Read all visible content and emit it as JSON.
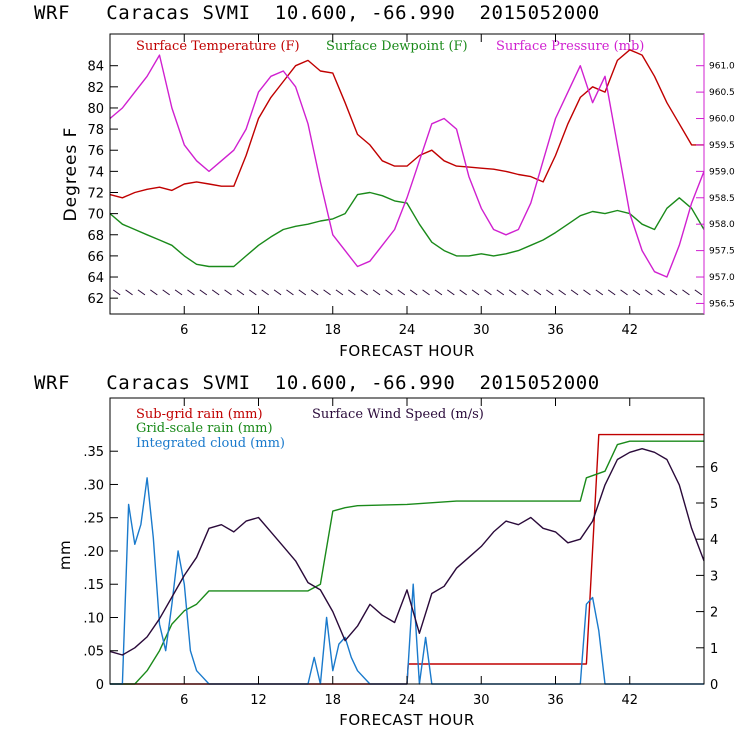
{
  "chart_data": [
    {
      "type": "line",
      "title": "WRF   Caracas SVMI  10.600, -66.990  2015052000",
      "xlabel": "FORECAST HOUR",
      "ylabel": "Degrees F",
      "xlim": [
        0,
        48
      ],
      "ylim": [
        60.5,
        87
      ],
      "xticks": [
        6,
        12,
        18,
        24,
        30,
        36,
        42
      ],
      "yticks": [
        62,
        64,
        66,
        68,
        70,
        72,
        74,
        76,
        78,
        80,
        82,
        84
      ],
      "y2lim": [
        956.3,
        961.6
      ],
      "y2ticks": [
        "956.5",
        "957.0",
        "957.5",
        "958.0",
        "958.5",
        "959.0",
        "959.5",
        "960.0",
        "960.5",
        "961.0"
      ],
      "legend": [
        "Surface Temperature (F)",
        "Surface Dewpoint (F)",
        "Surface Pressure (mb)"
      ],
      "colors": {
        "temperature": "#c00000",
        "dewpoint": "#1a8a1a",
        "pressure": "#d020d0",
        "wind": "#2a0a3a"
      },
      "x": [
        0,
        1,
        2,
        3,
        4,
        5,
        6,
        7,
        8,
        9,
        10,
        11,
        12,
        13,
        14,
        15,
        16,
        17,
        18,
        19,
        20,
        21,
        22,
        23,
        24,
        25,
        26,
        27,
        28,
        29,
        30,
        31,
        32,
        33,
        34,
        35,
        36,
        37,
        38,
        39,
        40,
        41,
        42,
        43,
        44,
        45,
        46,
        47,
        48
      ],
      "series": [
        {
          "name": "Surface Temperature (F)",
          "axis": "left",
          "values": [
            71.8,
            71.5,
            72.0,
            72.3,
            72.5,
            72.2,
            72.8,
            73.0,
            72.8,
            72.6,
            72.6,
            75.5,
            79.0,
            81.0,
            82.5,
            84.0,
            84.5,
            83.5,
            83.3,
            80.5,
            77.5,
            76.5,
            75.0,
            74.5,
            74.5,
            75.5,
            76.0,
            75.0,
            74.5,
            74.4,
            74.3,
            74.2,
            74.0,
            73.7,
            73.5,
            73.0,
            75.5,
            78.5,
            81.0,
            82.0,
            81.5,
            84.5,
            85.5,
            85.0,
            83.0,
            80.5,
            78.5,
            76.5,
            76.5
          ]
        },
        {
          "name": "Surface Dewpoint (F)",
          "axis": "left",
          "values": [
            70.0,
            69.0,
            68.5,
            68.0,
            67.5,
            67.0,
            66.0,
            65.2,
            65.0,
            65.0,
            65.0,
            66.0,
            67.0,
            67.8,
            68.5,
            68.8,
            69.0,
            69.3,
            69.5,
            70.0,
            71.8,
            72.0,
            71.7,
            71.2,
            71.0,
            69.0,
            67.3,
            66.5,
            66.0,
            66.0,
            66.2,
            66.0,
            66.2,
            66.5,
            67.0,
            67.5,
            68.2,
            69.0,
            69.8,
            70.2,
            70.0,
            70.3,
            70.0,
            69.0,
            68.5,
            70.5,
            71.5,
            70.5,
            68.5
          ]
        },
        {
          "name": "Surface Pressure (mb)",
          "axis": "right",
          "values": [
            960.0,
            960.2,
            960.5,
            960.8,
            961.2,
            960.2,
            959.5,
            959.2,
            959.0,
            959.2,
            959.4,
            959.8,
            960.5,
            960.8,
            960.9,
            960.6,
            959.9,
            958.8,
            957.8,
            957.5,
            957.2,
            957.3,
            957.6,
            957.9,
            958.5,
            959.2,
            959.9,
            960.0,
            959.8,
            958.9,
            958.3,
            957.9,
            957.8,
            957.9,
            958.4,
            959.2,
            960.0,
            960.5,
            961.0,
            960.3,
            960.8,
            959.5,
            958.2,
            957.5,
            957.1,
            957.0,
            957.6,
            958.4,
            959.0
          ]
        }
      ],
      "wind_barbs_band_y": 62.5
    },
    {
      "type": "line",
      "title": "WRF   Caracas SVMI  10.600, -66.990  2015052000",
      "xlabel": "FORECAST HOUR",
      "ylabel": "mm",
      "xlim": [
        0,
        48
      ],
      "ylim": [
        0,
        0.43
      ],
      "xticks": [
        6,
        12,
        18,
        24,
        30,
        36,
        42
      ],
      "yticks": [
        "0",
        ".05",
        ".10",
        ".15",
        ".20",
        ".25",
        ".30",
        ".35"
      ],
      "y2lim": [
        0,
        7.9
      ],
      "y2ticks": [
        "0",
        "1",
        "2",
        "3",
        "4",
        "5",
        "6"
      ],
      "legend": [
        "Sub-grid rain (mm)",
        "Grid-scale rain (mm)",
        "Integrated cloud (mm)",
        "Surface Wind Speed (m/s)"
      ],
      "colors": {
        "subgrid": "#c00000",
        "gridscale": "#1a8a1a",
        "cloud": "#1a7acc",
        "wind": "#2a0a3a"
      },
      "series": [
        {
          "name": "Sub-grid rain (mm)",
          "axis": "left",
          "x": [
            0,
            24,
            24.1,
            38.5,
            39.5,
            48
          ],
          "values": [
            0,
            0,
            0.03,
            0.03,
            0.375,
            0.375
          ]
        },
        {
          "name": "Grid-scale rain (mm)",
          "axis": "left",
          "x": [
            0,
            2,
            3,
            4,
            5,
            6,
            7,
            8,
            10,
            12,
            14,
            16,
            17,
            18,
            19,
            20,
            24,
            28,
            32,
            36,
            38,
            38.5,
            40,
            41,
            42,
            48
          ],
          "values": [
            0,
            0,
            0.02,
            0.05,
            0.09,
            0.11,
            0.12,
            0.14,
            0.14,
            0.14,
            0.14,
            0.14,
            0.15,
            0.26,
            0.265,
            0.268,
            0.27,
            0.275,
            0.275,
            0.275,
            0.275,
            0.31,
            0.32,
            0.36,
            0.365,
            0.365
          ]
        },
        {
          "name": "Integrated cloud (mm)",
          "axis": "left",
          "x": [
            0,
            1,
            1.5,
            2,
            2.5,
            3,
            3.5,
            4,
            4.5,
            5,
            5.5,
            6,
            6.5,
            7,
            7.5,
            8,
            9,
            10,
            16,
            16.5,
            17,
            17.5,
            18,
            18.5,
            19,
            19.5,
            20,
            21,
            24,
            24.5,
            25,
            25.5,
            26,
            27,
            38,
            38.5,
            39,
            39.5,
            40,
            41,
            48
          ],
          "values": [
            0,
            0,
            0.27,
            0.21,
            0.24,
            0.31,
            0.22,
            0.09,
            0.05,
            0.12,
            0.2,
            0.15,
            0.05,
            0.02,
            0.01,
            0,
            0,
            0,
            0,
            0.04,
            0,
            0.1,
            0.02,
            0.06,
            0.07,
            0.04,
            0.02,
            0,
            0,
            0.15,
            0,
            0.07,
            0,
            0,
            0,
            0.12,
            0.13,
            0.08,
            0,
            0,
            0
          ]
        },
        {
          "name": "Surface Wind Speed (m/s)",
          "axis": "right",
          "x": [
            0,
            1,
            2,
            3,
            4,
            5,
            6,
            7,
            8,
            9,
            10,
            11,
            12,
            13,
            14,
            15,
            16,
            17,
            18,
            19,
            20,
            21,
            22,
            23,
            24,
            25,
            26,
            27,
            28,
            29,
            30,
            31,
            32,
            33,
            34,
            35,
            36,
            37,
            38,
            39,
            40,
            41,
            42,
            43,
            44,
            45,
            46,
            47,
            48
          ],
          "values": [
            0.9,
            0.8,
            1.0,
            1.3,
            1.8,
            2.4,
            3.0,
            3.5,
            4.3,
            4.4,
            4.2,
            4.5,
            4.6,
            4.2,
            3.8,
            3.4,
            2.8,
            2.6,
            2.0,
            1.2,
            1.6,
            2.2,
            1.9,
            1.7,
            2.6,
            1.4,
            2.5,
            2.7,
            3.2,
            3.5,
            3.8,
            4.2,
            4.5,
            4.4,
            4.6,
            4.3,
            4.2,
            3.9,
            4.0,
            4.5,
            5.5,
            6.2,
            6.4,
            6.5,
            6.4,
            6.2,
            5.5,
            4.3,
            3.4
          ]
        }
      ]
    }
  ]
}
